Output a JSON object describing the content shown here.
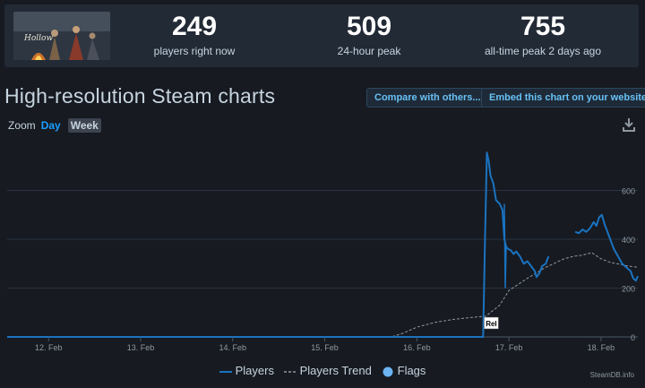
{
  "stats": [
    {
      "value": "249",
      "label": "players right now"
    },
    {
      "value": "509",
      "label": "24-hour peak"
    },
    {
      "value": "755",
      "label": "all-time peak 2 days ago"
    }
  ],
  "page": {
    "title": "High-resolution Steam charts",
    "compare_button": "Compare with others...",
    "embed_button": "Embed this chart on your website",
    "zoom_label": "Zoom",
    "zoom_day": "Day",
    "zoom_week": "Week",
    "watermark": "SteamDB.info"
  },
  "icons": {
    "download": "download-icon",
    "flag": "flag-marker"
  },
  "colors": {
    "players": "#1a73c0",
    "trend": "#8f98a0",
    "flags": "#6cb4f2",
    "background": "#171a21"
  },
  "chart_data": {
    "type": "line",
    "x_unit": "days (Feb)",
    "x_ticks": [
      {
        "label": "12. Feb",
        "day": 12
      },
      {
        "label": "13. Feb",
        "day": 13
      },
      {
        "label": "14. Feb",
        "day": 14
      },
      {
        "label": "15. Feb",
        "day": 15
      },
      {
        "label": "16. Feb",
        "day": 16
      },
      {
        "label": "17. Feb",
        "day": 17
      },
      {
        "label": "18. Feb",
        "day": 18
      }
    ],
    "y_ticks": [
      0,
      200,
      400,
      600
    ],
    "ylim": [
      0,
      800
    ],
    "xlim": [
      11.55,
      18.4
    ],
    "grid": true,
    "legend_position": "bottom-center",
    "series": [
      {
        "name": "Players",
        "style": "solid",
        "segments": [
          [
            [
              11.55,
              0
            ],
            [
              16.65,
              0
            ],
            [
              16.68,
              0
            ],
            [
              16.72,
              0
            ],
            [
              16.74,
              400
            ],
            [
              16.76,
              755
            ],
            [
              16.78,
              720
            ],
            [
              16.8,
              660
            ],
            [
              16.83,
              630
            ],
            [
              16.86,
              560
            ],
            [
              16.9,
              545
            ],
            [
              16.93,
              520
            ],
            [
              16.95,
              400
            ],
            [
              16.97,
              370
            ],
            [
              16.99,
              360
            ],
            [
              17.02,
              355
            ],
            [
              17.05,
              340
            ],
            [
              17.08,
              350
            ],
            [
              17.12,
              330
            ],
            [
              17.16,
              300
            ],
            [
              17.2,
              310
            ],
            [
              17.24,
              290
            ],
            [
              17.28,
              270
            ],
            [
              17.3,
              245
            ],
            [
              17.33,
              260
            ],
            [
              17.36,
              290
            ],
            [
              17.4,
              300
            ],
            [
              17.43,
              330
            ]
          ],
          [
            [
              17.72,
              430
            ],
            [
              17.76,
              425
            ],
            [
              17.8,
              440
            ],
            [
              17.84,
              430
            ],
            [
              17.88,
              445
            ],
            [
              17.92,
              470
            ],
            [
              17.95,
              455
            ],
            [
              17.98,
              490
            ],
            [
              18.01,
              500
            ],
            [
              18.04,
              460
            ],
            [
              18.06,
              440
            ],
            [
              18.08,
              420
            ],
            [
              18.11,
              390
            ],
            [
              18.14,
              360
            ],
            [
              18.17,
              340
            ],
            [
              18.2,
              320
            ],
            [
              18.23,
              300
            ],
            [
              18.26,
              290
            ],
            [
              18.29,
              280
            ],
            [
              18.32,
              270
            ],
            [
              18.35,
              240
            ],
            [
              18.38,
              230
            ],
            [
              18.4,
              249
            ]
          ]
        ],
        "spike": [
          [
            16.95,
            545
          ],
          [
            16.96,
            200
          ],
          [
            16.97,
            370
          ]
        ]
      },
      {
        "name": "Players Trend",
        "style": "dashed",
        "points": [
          [
            11.55,
            0
          ],
          [
            15.72,
            0
          ],
          [
            15.85,
            15
          ],
          [
            16.0,
            40
          ],
          [
            16.2,
            60
          ],
          [
            16.4,
            72
          ],
          [
            16.6,
            80
          ],
          [
            16.75,
            85
          ],
          [
            16.9,
            130
          ],
          [
            17.0,
            190
          ],
          [
            17.2,
            240
          ],
          [
            17.4,
            285
          ],
          [
            17.6,
            320
          ],
          [
            17.7,
            330
          ],
          [
            17.8,
            335
          ],
          [
            17.9,
            345
          ],
          [
            18.0,
            320
          ],
          [
            18.1,
            305
          ],
          [
            18.2,
            298
          ],
          [
            18.3,
            290
          ],
          [
            18.4,
            285
          ]
        ]
      }
    ],
    "flags": [
      {
        "day": 16.75,
        "label": "Rel"
      }
    ],
    "legend": [
      "Players",
      "Players Trend",
      "Flags"
    ]
  }
}
